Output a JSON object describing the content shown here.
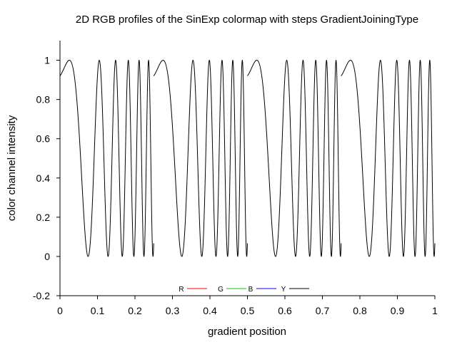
{
  "chart_data": {
    "type": "line",
    "title": "2D RGB profiles of the SinExp colormap with steps GradientJoiningType",
    "xlabel": "gradient position",
    "ylabel": "color channel intensity",
    "xlim": [
      0,
      1
    ],
    "ylim": [
      -0.2,
      1.1
    ],
    "x_ticks": [
      "0",
      "0.1",
      "0.2",
      "0.3",
      "0.4",
      "0.5",
      "0.6",
      "0.7",
      "0.8",
      "0.9",
      "1"
    ],
    "y_ticks": [
      "-0.2",
      "0",
      "0.2",
      "0.4",
      "0.6",
      "0.8",
      "1"
    ],
    "grid": false,
    "legend_position": "bottom-center",
    "series": [
      {
        "name": "R",
        "color": "#ff0000"
      },
      {
        "name": "G",
        "color": "#00cc00"
      },
      {
        "name": "B",
        "color": "#0000ff"
      },
      {
        "name": "Y",
        "color": "#000000"
      }
    ],
    "profile": {
      "segments": 4,
      "segment_width": 0.25,
      "segment_starts_x": [
        0,
        0.25,
        0.5,
        0.75
      ],
      "start_value": 0.92,
      "peak_x_in_segment": 0.025,
      "peak_value": 1.0,
      "first_minimum_x_in_segment": 0.075,
      "minimum_value": 0.0,
      "oscillation_note": "y = (1 + sin(phase)) / 2 with phase increasing quadratically across each segment"
    }
  }
}
